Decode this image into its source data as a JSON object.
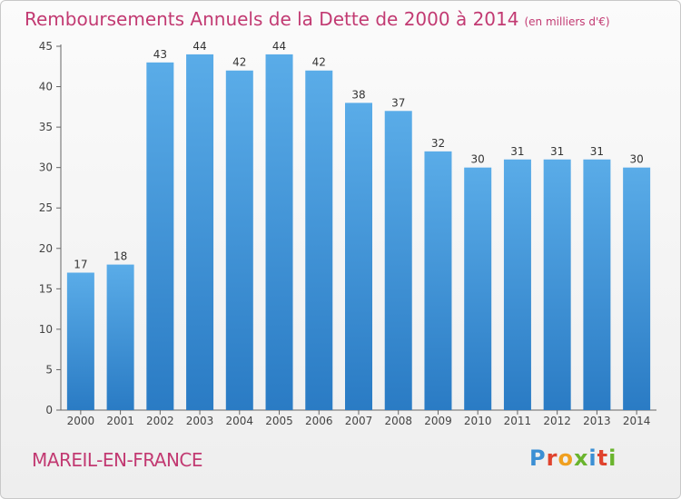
{
  "title": "Remboursements Annuels de la Dette de 2000 à 2014",
  "unit": "(en milliers d'€)",
  "location": "MAREIL-EN-FRANCE",
  "logo": {
    "letters": [
      "P",
      "r",
      "o",
      "x",
      "i",
      "t",
      "i"
    ],
    "colors": [
      "#3b8fd4",
      "#e0432e",
      "#f0a020",
      "#6ab42d",
      "#3b8fd4",
      "#e0432e",
      "#6ab42d"
    ]
  },
  "colors": {
    "bar_top": "#5aace8",
    "bar_bottom": "#2a7bc4",
    "title": "#c23a72"
  },
  "chart_data": {
    "type": "bar",
    "title": "Remboursements Annuels de la Dette de 2000 à 2014",
    "xlabel": "",
    "ylabel": "",
    "categories": [
      "2000",
      "2001",
      "2002",
      "2003",
      "2004",
      "2005",
      "2006",
      "2007",
      "2008",
      "2009",
      "2010",
      "2011",
      "2012",
      "2013",
      "2014"
    ],
    "values": [
      17,
      18,
      43,
      44,
      42,
      44,
      42,
      38,
      37,
      32,
      30,
      31,
      31,
      31,
      30
    ],
    "ylim": [
      0,
      45
    ],
    "yticks": [
      0,
      5,
      10,
      15,
      20,
      25,
      30,
      35,
      40,
      45
    ],
    "grid": false,
    "legend": "none"
  }
}
